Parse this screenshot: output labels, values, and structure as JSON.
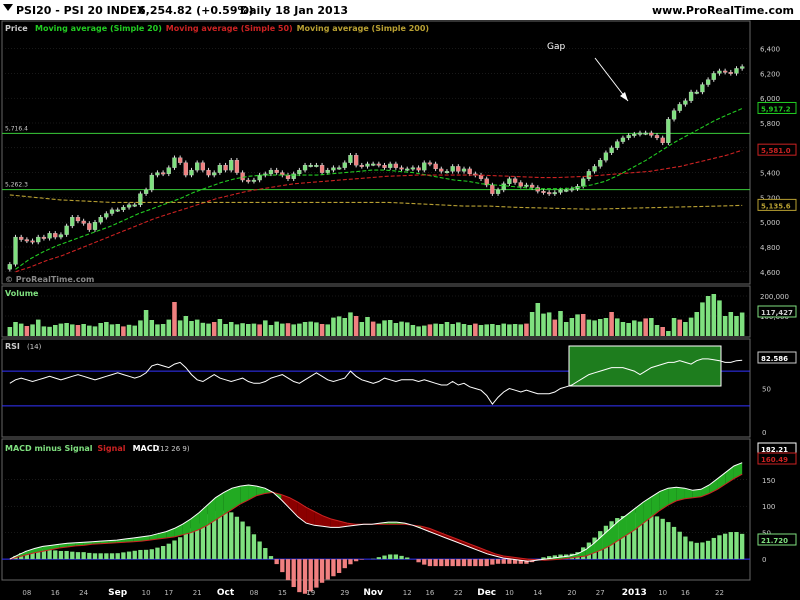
{
  "header": {
    "symbol": "PSI20 - PSI 20 INDEX",
    "price": "6,254.82 (+0.59%)",
    "period": "Daily 18 Jan 2013",
    "brand": "www.ProRealTime.com"
  },
  "watermark": "© ProRealTime.com",
  "colors": {
    "bg": "#000000",
    "grid": "#333333",
    "up": "#7fe07f",
    "down": "#f08080",
    "sma20": "#22cc22",
    "sma50": "#cc2222",
    "sma200": "#b8a032",
    "hline": "#3acb3a",
    "rsi": "#ffffff",
    "band": "#3333ff"
  },
  "chart_data": [
    {
      "type": "candlestick",
      "title": "Price",
      "legend": [
        {
          "name": "Moving average (Simple 20)",
          "color": "#22cc22"
        },
        {
          "name": "Moving average (Simple 50)",
          "color": "#cc2222"
        },
        {
          "name": "Moving average (Simple 200)",
          "color": "#b8a032"
        }
      ],
      "ylim": [
        4550,
        6550
      ],
      "yticks": [
        "6,400",
        "6,200",
        "6,000",
        "5,800",
        "5,600",
        "5,400",
        "5,200",
        "5,000",
        "4,800",
        "4,600"
      ],
      "levels": [
        {
          "label": "5,716.4",
          "value": 5716.4
        },
        {
          "label": "5,262.3",
          "value": 5262.3
        }
      ],
      "last_values": [
        {
          "label": "5,917.2",
          "value": 5917.2,
          "color": "#22cc22"
        },
        {
          "label": "5,581.0",
          "value": 5581.0,
          "color": "#cc2222"
        },
        {
          "label": "5,135.6",
          "value": 5135.6,
          "color": "#b8a032"
        }
      ],
      "annotation": "Gap",
      "closes": [
        4660,
        4880,
        4860,
        4850,
        4840,
        4880,
        4870,
        4910,
        4880,
        4900,
        4970,
        5040,
        5010,
        4990,
        4940,
        5000,
        5040,
        5070,
        5100,
        5100,
        5120,
        5140,
        5140,
        5230,
        5260,
        5380,
        5400,
        5390,
        5440,
        5520,
        5480,
        5380,
        5420,
        5480,
        5420,
        5380,
        5400,
        5460,
        5420,
        5500,
        5400,
        5340,
        5330,
        5340,
        5380,
        5390,
        5420,
        5400,
        5380,
        5350,
        5390,
        5420,
        5460,
        5460,
        5460,
        5400,
        5420,
        5440,
        5440,
        5480,
        5540,
        5460,
        5450,
        5470,
        5470,
        5460,
        5440,
        5470,
        5440,
        5430,
        5430,
        5440,
        5420,
        5480,
        5470,
        5430,
        5410,
        5410,
        5450,
        5410,
        5430,
        5390,
        5380,
        5350,
        5300,
        5230,
        5260,
        5310,
        5350,
        5320,
        5290,
        5300,
        5280,
        5250,
        5240,
        5230,
        5240,
        5260,
        5260,
        5270,
        5290,
        5350,
        5410,
        5450,
        5500,
        5560,
        5600,
        5650,
        5680,
        5700,
        5710,
        5720,
        5720,
        5700,
        5680,
        5640,
        5830,
        5900,
        5950,
        5980,
        6050,
        6050,
        6110,
        6150,
        6200,
        6220,
        6210,
        6200,
        6240,
        6255
      ],
      "sma20": {
        "start": 1,
        "values": [
          4620,
          4700,
          4760,
          4810,
          4850,
          4890,
          4930,
          4970,
          5020,
          5070,
          5110,
          5150,
          5190,
          5240,
          5280,
          5320,
          5350,
          5370,
          5380,
          5380,
          5380,
          5380,
          5380,
          5390,
          5400,
          5410,
          5420,
          5420,
          5410,
          5400,
          5380,
          5360,
          5340,
          5330,
          5310,
          5300,
          5290,
          5280,
          5270,
          5270,
          5270,
          5280,
          5300,
          5330,
          5380,
          5440,
          5500,
          5570,
          5640,
          5700,
          5760,
          5820,
          5870,
          5917.2
        ]
      },
      "sma50": {
        "start": 1,
        "values": [
          4600,
          4640,
          4690,
          4730,
          4780,
          4830,
          4880,
          4930,
          4980,
          5030,
          5070,
          5110,
          5150,
          5190,
          5220,
          5250,
          5270,
          5290,
          5310,
          5320,
          5330,
          5340,
          5350,
          5360,
          5370,
          5375,
          5380,
          5380,
          5380,
          5380,
          5380,
          5375,
          5370,
          5365,
          5360,
          5360,
          5365,
          5370,
          5380,
          5390,
          5400,
          5410,
          5430,
          5450,
          5480,
          5510,
          5540,
          5581.0
        ]
      },
      "sma200": {
        "start": 0,
        "values": [
          5220,
          5200,
          5180,
          5170,
          5160,
          5160,
          5160,
          5160,
          5160,
          5160,
          5160,
          5160,
          5160,
          5160,
          5160,
          5160,
          5150,
          5140,
          5130,
          5130,
          5120,
          5115,
          5110,
          5105,
          5110,
          5115,
          5120,
          5125,
          5130,
          5135.6
        ]
      }
    },
    {
      "type": "bar",
      "title": "Volume",
      "ylim": [
        0,
        230000
      ],
      "yticks": [
        "200,000",
        "100,000"
      ],
      "last_value": "117,427",
      "values": [
        45000,
        70000,
        62000,
        50000,
        58000,
        82000,
        48000,
        46000,
        55000,
        62000,
        65000,
        58000,
        55000,
        60000,
        52000,
        48000,
        65000,
        70000,
        58000,
        60000,
        48000,
        56000,
        52000,
        78000,
        130000,
        80000,
        58000,
        60000,
        82000,
        170000,
        78000,
        100000,
        75000,
        82000,
        66000,
        62000,
        70000,
        85000,
        60000,
        70000,
        58000,
        64000,
        60000,
        62000,
        58000,
        78000,
        55000,
        72000,
        62000,
        64000,
        58000,
        62000,
        70000,
        72000,
        68000,
        60000,
        58000,
        92000,
        98000,
        90000,
        118000,
        100000,
        70000,
        95000,
        72000,
        62000,
        78000,
        80000,
        65000,
        72000,
        68000,
        55000,
        48000,
        52000,
        58000,
        62000,
        60000,
        70000,
        60000,
        68000,
        60000,
        55000,
        62000,
        55000,
        58000,
        60000,
        55000,
        62000,
        58000,
        60000,
        58000,
        62000,
        120000,
        165000,
        112000,
        118000,
        82000,
        125000,
        70000,
        90000,
        108000,
        110000,
        82000,
        78000,
        85000,
        90000,
        120000,
        88000,
        70000,
        65000,
        78000,
        72000,
        88000,
        90000,
        55000,
        45000,
        25000,
        90000,
        82000,
        70000,
        92000,
        120000,
        168000,
        200000,
        210000,
        178000,
        100000,
        120000,
        100000,
        117427
      ],
      "colors_down": [
        3,
        12,
        20,
        29,
        36,
        44,
        49,
        55,
        61,
        64,
        74,
        82,
        91,
        96,
        101,
        106,
        112,
        115,
        118
      ]
    },
    {
      "type": "line",
      "title": "RSI",
      "params": "(14)",
      "ylim": [
        0,
        100
      ],
      "yticks": [
        "50",
        "0"
      ],
      "bands": [
        70,
        30
      ],
      "last_value": "82.586",
      "values": [
        56,
        60,
        62,
        60,
        58,
        60,
        62,
        64,
        62,
        60,
        62,
        64,
        66,
        64,
        62,
        60,
        62,
        64,
        66,
        68,
        66,
        64,
        62,
        64,
        68,
        76,
        78,
        76,
        74,
        78,
        80,
        74,
        66,
        60,
        58,
        62,
        66,
        62,
        60,
        58,
        60,
        62,
        58,
        56,
        56,
        58,
        62,
        64,
        66,
        62,
        58,
        56,
        60,
        64,
        68,
        64,
        60,
        58,
        60,
        62,
        70,
        64,
        60,
        58,
        56,
        58,
        62,
        60,
        58,
        60,
        60,
        60,
        58,
        60,
        58,
        56,
        54,
        54,
        58,
        54,
        56,
        52,
        50,
        48,
        42,
        32,
        40,
        46,
        50,
        48,
        46,
        48,
        46,
        44,
        44,
        44,
        46,
        50,
        52,
        54,
        58,
        62,
        66,
        68,
        70,
        72,
        74,
        74,
        74,
        72,
        70,
        66,
        70,
        74,
        76,
        78,
        80,
        80,
        82,
        80,
        78,
        82,
        84,
        84,
        83,
        82,
        80,
        80,
        82,
        82.586
      ]
    },
    {
      "type": "line",
      "title": "MACD minus Signal",
      "legend": [
        {
          "name": "MACD minus Signal",
          "color": "#7fe07f"
        },
        {
          "name": "Signal",
          "color": "#cc2222"
        },
        {
          "name": "MACD",
          "color": "#ffffff"
        }
      ],
      "params": "(12 26 9)",
      "ylim": [
        -30,
        210
      ],
      "yticks": [
        "150",
        "100",
        "50",
        "0"
      ],
      "last_values": [
        {
          "label": "182.21",
          "value": 182.21,
          "color": "#ffffff"
        },
        {
          "label": "160.49",
          "value": 160.49,
          "color": "#cc2222"
        },
        {
          "label": "21.720",
          "value": 21.72,
          "color": "#7fe07f"
        }
      ],
      "macd": [
        0,
        8,
        15,
        20,
        24,
        26,
        28,
        30,
        31,
        32,
        33,
        34,
        35,
        36,
        38,
        40,
        42,
        44,
        48,
        52,
        58,
        66,
        76,
        88,
        102,
        116,
        126,
        134,
        138,
        140,
        138,
        134,
        126,
        112,
        96,
        80,
        68,
        64,
        62,
        60,
        60,
        62,
        64,
        66,
        66,
        68,
        70,
        70,
        68,
        64,
        58,
        52,
        46,
        40,
        34,
        28,
        22,
        16,
        10,
        6,
        2,
        0,
        -2,
        -4,
        -2,
        0,
        2,
        4,
        6,
        10,
        18,
        30,
        44,
        58,
        72,
        84,
        96,
        108,
        118,
        128,
        134,
        136,
        134,
        130,
        132,
        140,
        152,
        164,
        176,
        182.21
      ],
      "signal": [
        0,
        4,
        8,
        12,
        15,
        18,
        21,
        23,
        25,
        26,
        28,
        29,
        30,
        31,
        32,
        33,
        34,
        36,
        38,
        40,
        42,
        46,
        50,
        56,
        64,
        74,
        84,
        94,
        104,
        112,
        120,
        124,
        126,
        122,
        116,
        108,
        98,
        90,
        82,
        76,
        72,
        68,
        66,
        66,
        66,
        66,
        66,
        66,
        66,
        64,
        62,
        58,
        52,
        46,
        40,
        34,
        28,
        22,
        16,
        10,
        6,
        4,
        2,
        0,
        -1,
        -2,
        -1,
        0,
        2,
        4,
        6,
        12,
        18,
        26,
        36,
        46,
        56,
        68,
        80,
        92,
        102,
        110,
        114,
        116,
        118,
        124,
        132,
        142,
        152,
        160.49
      ]
    }
  ],
  "x_axis": {
    "ticks": [
      "08",
      "16",
      "24",
      "Sep",
      "10",
      "17",
      "21",
      "Oct",
      "08",
      "15",
      "19",
      "29",
      "Nov",
      "12",
      "16",
      "22",
      "Dec",
      "10",
      "14",
      "20",
      "27",
      "2013",
      "10",
      "16",
      "22"
    ]
  },
  "panels": {
    "price": {
      "title": "Price"
    },
    "volume": {
      "title": "Volume"
    },
    "rsi": {
      "title": "RSI",
      "params": "(14)"
    },
    "macd": {
      "title": "MACD minus Signal"
    }
  }
}
